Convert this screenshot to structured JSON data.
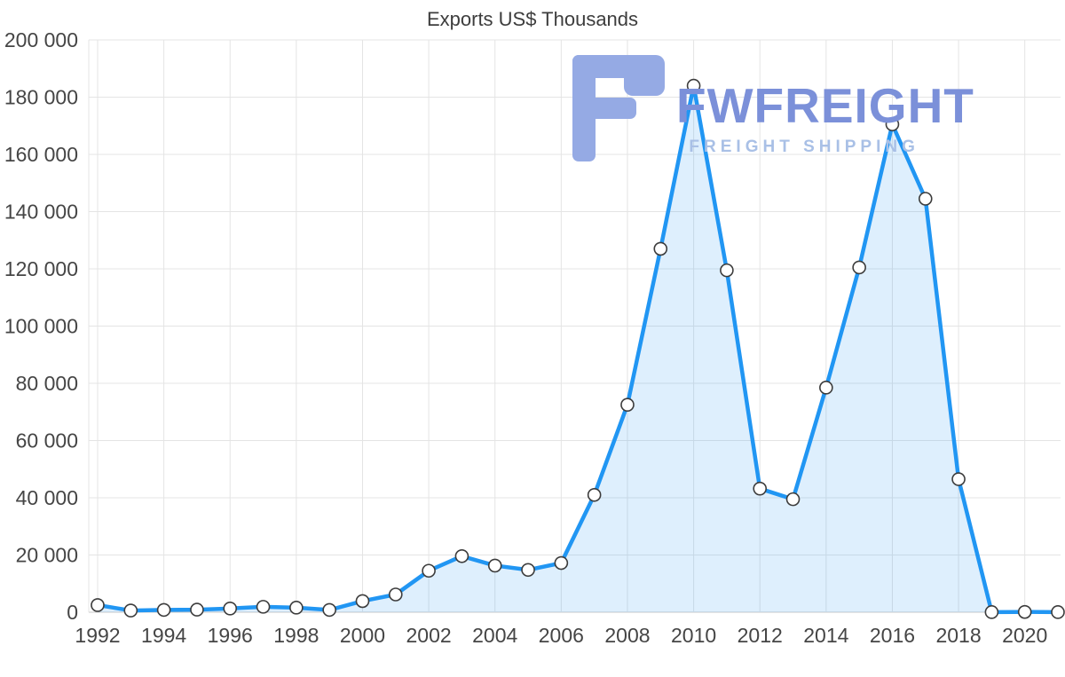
{
  "chart_data": {
    "type": "area",
    "title": "Exports US$ Thousands",
    "x": [
      1992,
      1993,
      1994,
      1995,
      1996,
      1997,
      1998,
      1999,
      2000,
      2001,
      2002,
      2003,
      2004,
      2005,
      2006,
      2007,
      2008,
      2009,
      2010,
      2011,
      2012,
      2013,
      2014,
      2015,
      2016,
      2017,
      2018,
      2019,
      2020,
      2021
    ],
    "values": [
      2500,
      600,
      800,
      900,
      1300,
      1900,
      1600,
      800,
      3900,
      6200,
      14500,
      19600,
      16300,
      14800,
      17200,
      41000,
      72500,
      127000,
      184000,
      119500,
      43200,
      39500,
      78500,
      120500,
      170500,
      144500,
      46500,
      50,
      100,
      50
    ],
    "ylim": [
      0,
      200000
    ],
    "ytick_values": [
      0,
      20000,
      40000,
      60000,
      80000,
      100000,
      120000,
      140000,
      160000,
      180000,
      200000
    ],
    "ytick_labels": [
      "0",
      "20 000",
      "40 000",
      "60 000",
      "80 000",
      "100 000",
      "120 000",
      "140 000",
      "160 000",
      "180 000",
      "200 000"
    ],
    "xtick_values": [
      1992,
      1994,
      1996,
      1998,
      2000,
      2002,
      2004,
      2006,
      2008,
      2010,
      2012,
      2014,
      2016,
      2018,
      2020
    ],
    "xtick_labels": [
      "1992",
      "1994",
      "1996",
      "1998",
      "2000",
      "2002",
      "2004",
      "2006",
      "2008",
      "2010",
      "2012",
      "2014",
      "2016",
      "2018",
      "2020"
    ],
    "grid": true,
    "legend": "none",
    "line_color": "#2196f3",
    "fill_color": "rgba(33,150,243,0.15)",
    "marker_fill": "#ffffff",
    "marker_stroke": "#3c3c3c",
    "grid_color": "#e4e4e4",
    "axis_color": "#c9c9c9",
    "tick_color": "#454545",
    "title_color": "#3d3d3d"
  },
  "watermark": {
    "brand": "FWFREIGHT",
    "tagline": "FREIGHT SHIPPING",
    "brand_color": "#7b90d9",
    "tagline_color": "#a9c0e6",
    "icon_color": "#95aae4"
  }
}
